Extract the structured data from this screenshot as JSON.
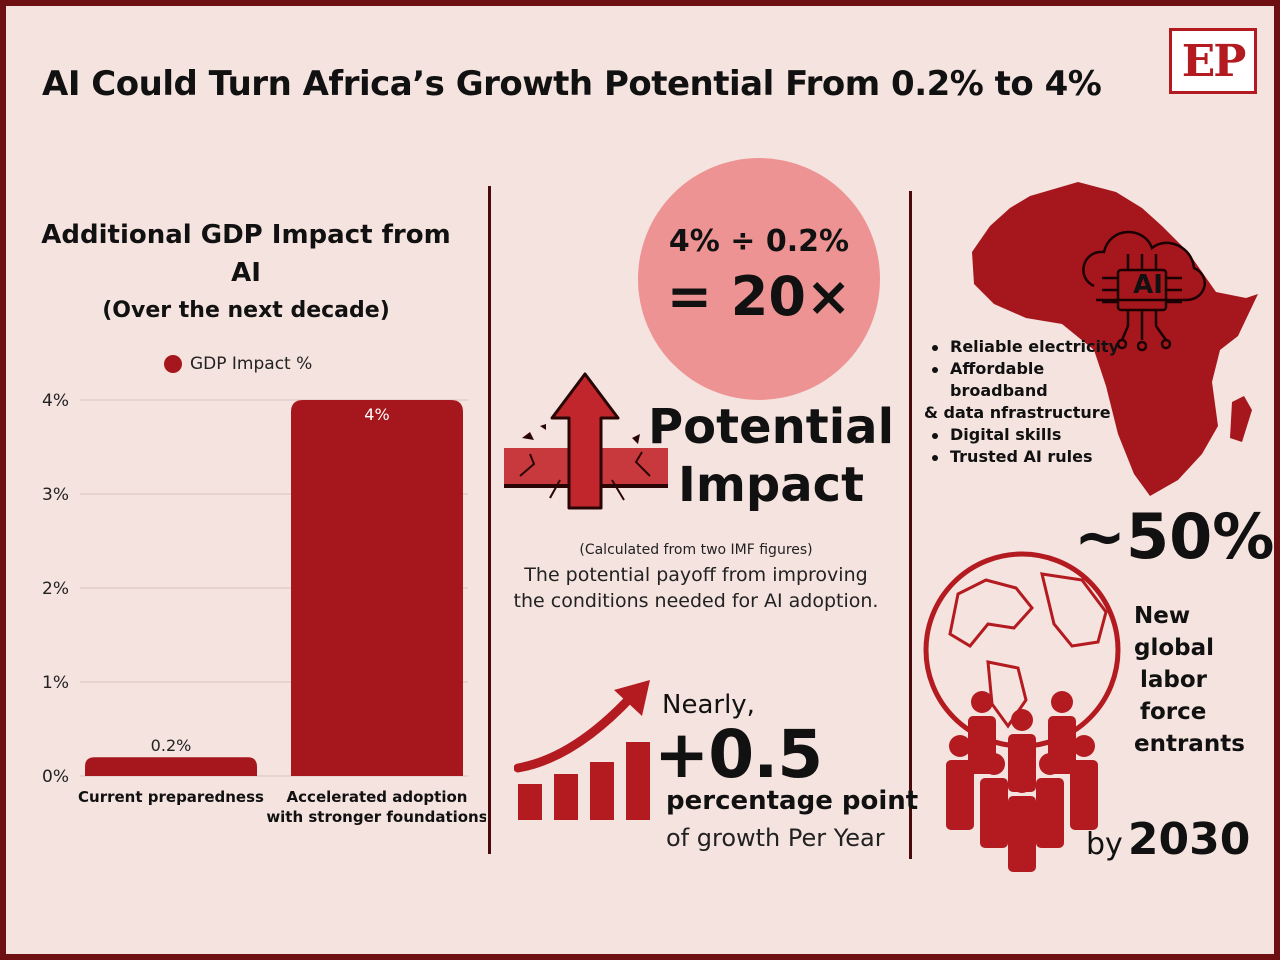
{
  "header": {
    "title": "AI Could Turn Africa’s Growth Potential From 0.2% to 4%",
    "logo_text": "EP"
  },
  "colors": {
    "background": "#f5e3df",
    "bar": "#a5171d",
    "accent_dark": "#6e0f12",
    "circle": "#ee9393"
  },
  "chart_data": {
    "type": "bar",
    "title": "Additional GDP Impact from AI",
    "subtitle": "(Over the next decade)",
    "legend": [
      "GDP Impact %"
    ],
    "legend_position": "top",
    "categories": [
      [
        "Current preparedness"
      ],
      [
        "Accelerated adoption",
        "with stronger foundations"
      ]
    ],
    "series": [
      {
        "name": "GDP Impact %",
        "values": [
          0.2,
          4
        ]
      }
    ],
    "data_labels": [
      "0.2%",
      "4%"
    ],
    "y_ticks": [
      0,
      1,
      2,
      3,
      4
    ],
    "y_tick_labels": [
      "0%",
      "1%",
      "2%",
      "3%",
      "4%"
    ],
    "ylim": [
      0,
      4
    ],
    "grid": true
  },
  "impact": {
    "formula": "4% ÷ 0.2%",
    "result": "= 20×",
    "label_line1": "Potential",
    "label_line2": "Impact",
    "calc_note": "(Calculated from two IMF figures)",
    "payoff_text": "The potential payoff from improving the conditions needed for AI adoption."
  },
  "growth": {
    "nearly": "Nearly,",
    "value": "+0.5",
    "unit": "percentage point",
    "period": "of growth Per Year"
  },
  "africa": {
    "ai_label": "AI",
    "conditions": [
      {
        "text": "Reliable electricity",
        "bullet": true
      },
      {
        "text": "Affordable broadband",
        "bullet": true
      },
      {
        "text": "& data nfrastructure",
        "bullet": false
      },
      {
        "text": "Digital skills",
        "bullet": true
      },
      {
        "text": "Trusted AI rules",
        "bullet": true
      }
    ]
  },
  "labor": {
    "share": "~50%",
    "lines": [
      "New",
      "global",
      "labor",
      "force",
      "entrants"
    ],
    "by": "by",
    "year": "2030"
  }
}
